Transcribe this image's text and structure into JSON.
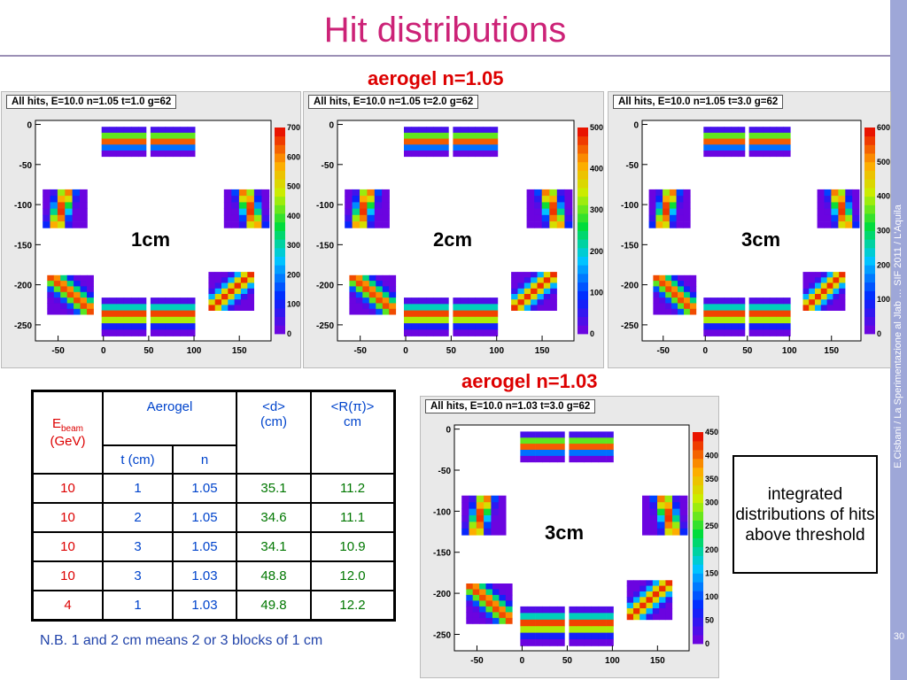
{
  "title": "Hit distributions",
  "sidebar_text": "E.Cisbani / La Sperimentazione al Jlab … SIF 2011 / L'Aquila",
  "page_number": "30",
  "headings": {
    "aerogel_105": "aerogel n=1.05",
    "aerogel_103": "aerogel n=1.03"
  },
  "chart_data": [
    {
      "type": "heatmap",
      "title": "All hits, E=10.0  n=1.05  t=1.0  g=62",
      "label": "1cm",
      "xlim": [
        -75,
        185
      ],
      "ylim": [
        -270,
        5
      ],
      "xticks": [
        -50,
        0,
        50,
        100,
        150
      ],
      "yticks": [
        0,
        -50,
        -100,
        -150,
        -200,
        -250
      ],
      "zticks": [
        0,
        100,
        200,
        300,
        400,
        500,
        600,
        700
      ],
      "grid": false
    },
    {
      "type": "heatmap",
      "title": "All hits, E=10.0  n=1.05  t=2.0  g=62",
      "label": "2cm",
      "xlim": [
        -75,
        185
      ],
      "ylim": [
        -270,
        5
      ],
      "xticks": [
        -50,
        0,
        50,
        100,
        150
      ],
      "yticks": [
        0,
        -50,
        -100,
        -150,
        -200,
        -250
      ],
      "zticks": [
        0,
        100,
        200,
        300,
        400,
        500
      ],
      "grid": false
    },
    {
      "type": "heatmap",
      "title": "All hits, E=10.0  n=1.05  t=3.0  g=62",
      "label": "3cm",
      "xlim": [
        -75,
        185
      ],
      "ylim": [
        -270,
        5
      ],
      "xticks": [
        -50,
        0,
        50,
        100,
        150
      ],
      "yticks": [
        0,
        -50,
        -100,
        -150,
        -200,
        -250
      ],
      "zticks": [
        0,
        100,
        200,
        300,
        400,
        500,
        600
      ],
      "grid": false
    },
    {
      "type": "heatmap",
      "title": "All hits, E=10.0  n=1.03  t=3.0  g=62",
      "label": "3cm",
      "xlim": [
        -75,
        185
      ],
      "ylim": [
        -270,
        5
      ],
      "xticks": [
        -50,
        0,
        50,
        100,
        150
      ],
      "yticks": [
        0,
        -50,
        -100,
        -150,
        -200,
        -250
      ],
      "zticks": [
        0,
        50,
        100,
        150,
        200,
        250,
        300,
        350,
        400,
        450
      ],
      "grid": false
    }
  ],
  "table": {
    "header": {
      "ebeam_main": "E",
      "ebeam_sub": "beam",
      "ebeam_unit": "(GeV)",
      "aerogel": "Aerogel",
      "d": "<d>",
      "d_unit": "(cm)",
      "r": "<R(π)>",
      "r_unit": "cm",
      "t": "t (cm)",
      "n": "n"
    },
    "rows": [
      {
        "e": "10",
        "t": "1",
        "n": "1.05",
        "d": "35.1",
        "r": "11.2"
      },
      {
        "e": "10",
        "t": "2",
        "n": "1.05",
        "d": "34.6",
        "r": "11.1"
      },
      {
        "e": "10",
        "t": "3",
        "n": "1.05",
        "d": "34.1",
        "r": "10.9"
      },
      {
        "e": "10",
        "t": "3",
        "n": "1.03",
        "d": "48.8",
        "r": "12.0"
      },
      {
        "e": "4",
        "t": "1",
        "n": "1.03",
        "d": "49.8",
        "r": "12.2"
      }
    ]
  },
  "note": "N.B. 1 and 2 cm means 2 or 3 blocks of 1 cm",
  "callout": "integrated distributions of hits above threshold",
  "colors": {
    "title": "#cc2277",
    "heading": "#dd0000",
    "sidebar": "#9ea7d8",
    "cell_blue": "#0044cc",
    "cell_green": "#007700"
  }
}
